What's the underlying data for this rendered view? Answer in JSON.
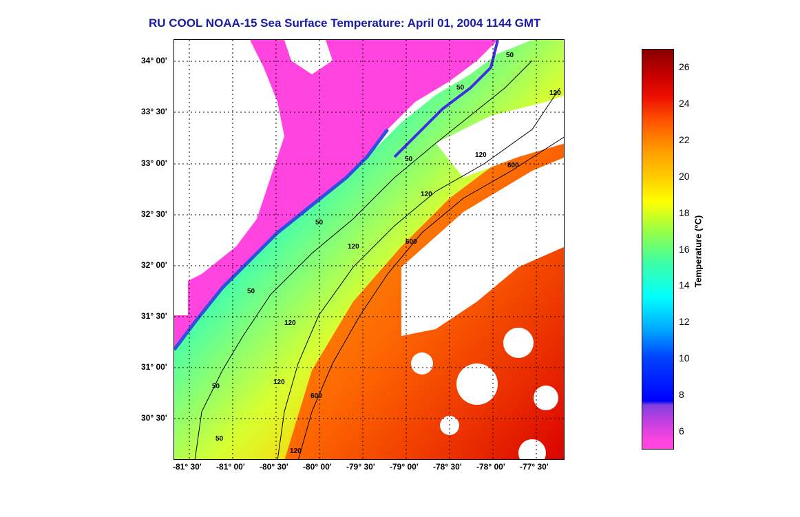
{
  "title": "RU COOL  NOAA-15  Sea Surface Temperature:  April 01, 2004 1144 GMT",
  "lat_labels": [
    "34° 00'",
    "33° 30'",
    "33° 00'",
    "32° 30'",
    "32° 00'",
    "31° 30'",
    "31° 00'",
    "30° 30'"
  ],
  "lon_labels": [
    "-81° 30'",
    "-81° 00'",
    "-80° 30'",
    "-80° 00'",
    "-79° 30'",
    "-79° 00'",
    "-78° 30'",
    "-78° 00'",
    "-77° 30'"
  ],
  "colorbar": {
    "title": "Temperature (°C)",
    "ticks": [
      "26",
      "24",
      "22",
      "20",
      "18",
      "16",
      "14",
      "12",
      "10",
      "8",
      "6"
    ],
    "range": [
      5,
      27
    ]
  },
  "contour_labels": {
    "c50": "50",
    "c120": "120",
    "c600": "600"
  },
  "colors": {
    "title": "#1a1aa8",
    "land": "#ff44e0",
    "cloud": "#ffffff"
  }
}
